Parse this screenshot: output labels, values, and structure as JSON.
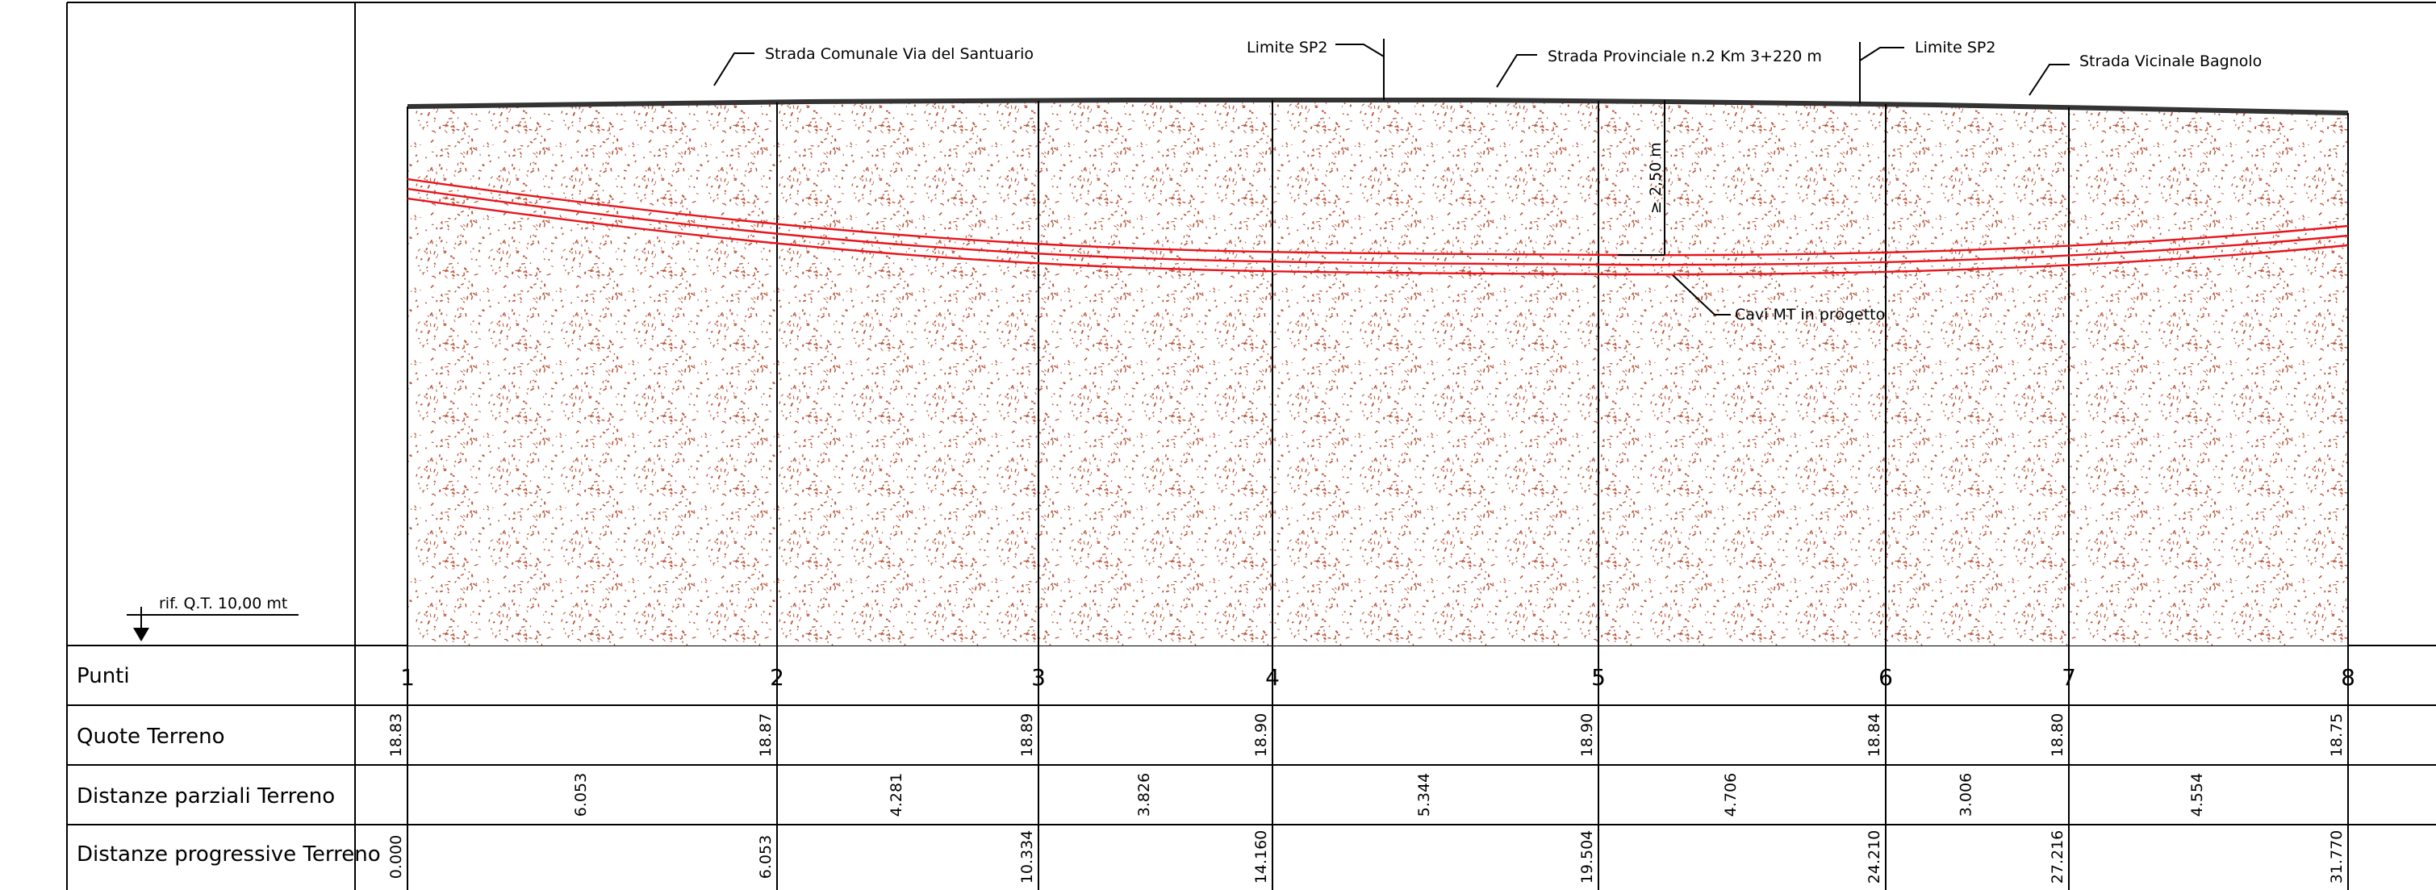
{
  "reference": {
    "label": "rif. Q.T. 10,00 mt"
  },
  "annotations": {
    "road_comunale": "Strada Comunale Via del Santuario",
    "limit_left": "Limite SP2",
    "road_provinciale": "Strada Provinciale n.2 Km 3+220 m",
    "limit_right": "Limite SP2",
    "road_vicinale": "Strada Vicinale Bagnolo",
    "depth": "≥ 2,50 m",
    "cables": "Cavi MT in progetto"
  },
  "table": {
    "row_labels": {
      "punti": "Punti",
      "quote": "Quote Terreno",
      "parziali": "Distanze parziali Terreno",
      "progressive": "Distanze progressive Terreno"
    },
    "points": [
      "1",
      "2",
      "3",
      "4",
      "5",
      "6",
      "7",
      "8"
    ],
    "quote": [
      "18.83",
      "18.87",
      "18.89",
      "18.90",
      "18.90",
      "18.84",
      "18.80",
      "18.75"
    ],
    "partial_distances": [
      "6.053",
      "4.281",
      "3.826",
      "5.344",
      "4.706",
      "3.006",
      "4.554"
    ],
    "progressive_distances": [
      "0.000",
      "6.053",
      "10.334",
      "14.160",
      "19.504",
      "24.210",
      "27.216",
      "31.770"
    ]
  },
  "colors": {
    "soil_speckle": "#b8573c",
    "cable": "#e8141b",
    "lines": "#000000"
  }
}
